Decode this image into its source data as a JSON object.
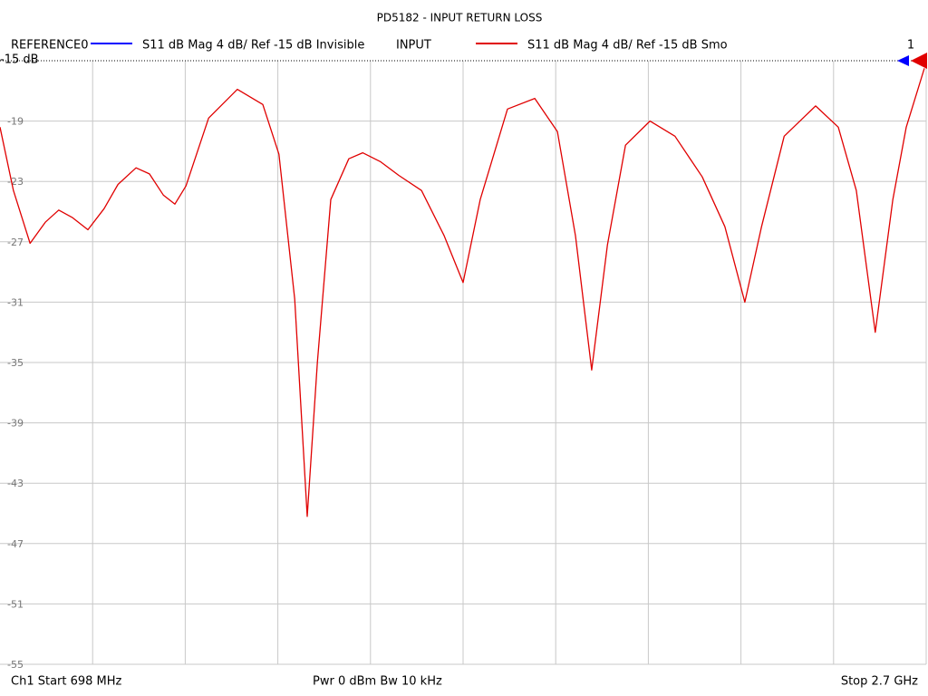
{
  "chart_data": {
    "type": "line",
    "title": "PD5182 - INPUT RETURN LOSS",
    "legend": [
      {
        "name": "REFERENCE0",
        "description": "S11  dB Mag  4 dB/ Ref -15 dB  Invisible",
        "color": "#0000ff"
      },
      {
        "name": "INPUT",
        "description": "S11  dB Mag  4 dB/ Ref -15 dB  Smo",
        "color": "#e00000"
      }
    ],
    "marker_label": "1",
    "footer": {
      "start": "Ch1  Start  698 MHz",
      "power": "Pwr  0 dBm  Bw  10 kHz",
      "stop": "Stop  2.7 GHz"
    },
    "xlim": [
      698,
      2700
    ],
    "ylim": [
      -55,
      -15
    ],
    "yticks": [
      {
        "value": -15,
        "label": "-15 dB"
      },
      -19,
      -23,
      -27,
      -31,
      -35,
      -39,
      -43,
      -47,
      -51,
      -55
    ],
    "grid": true,
    "x": [
      698,
      727,
      763,
      796,
      825,
      855,
      888,
      923,
      953,
      992,
      1021,
      1051,
      1076,
      1100,
      1149,
      1211,
      1266,
      1301,
      1335,
      1362,
      1384,
      1413,
      1452,
      1482,
      1521,
      1560,
      1609,
      1658,
      1699,
      1736,
      1795,
      1854,
      1903,
      1942,
      1977,
      2011,
      2050,
      2103,
      2157,
      2216,
      2265,
      2308,
      2344,
      2393,
      2461,
      2510,
      2549,
      2590,
      2628,
      2657,
      2696
    ],
    "series": [
      {
        "color": "#e00000",
        "values": [
          -19.4,
          -23.6,
          -27.1,
          -25.7,
          -24.9,
          -25.4,
          -26.2,
          -24.8,
          -23.2,
          -22.1,
          -22.5,
          -23.9,
          -24.5,
          -23.3,
          -18.8,
          -16.9,
          -17.9,
          -21.2,
          -30.8,
          -45.2,
          -35.0,
          -24.2,
          -21.5,
          -21.1,
          -21.7,
          -22.6,
          -23.6,
          -26.6,
          -29.7,
          -24.2,
          -18.2,
          -17.5,
          -19.7,
          -26.6,
          -35.5,
          -27.2,
          -20.6,
          -19.0,
          -20.0,
          -22.7,
          -26.0,
          -31.0,
          -26.0,
          -20.0,
          -18.0,
          -19.4,
          -23.6,
          -33.0,
          -24.2,
          -19.4,
          -15.5
        ]
      }
    ]
  }
}
